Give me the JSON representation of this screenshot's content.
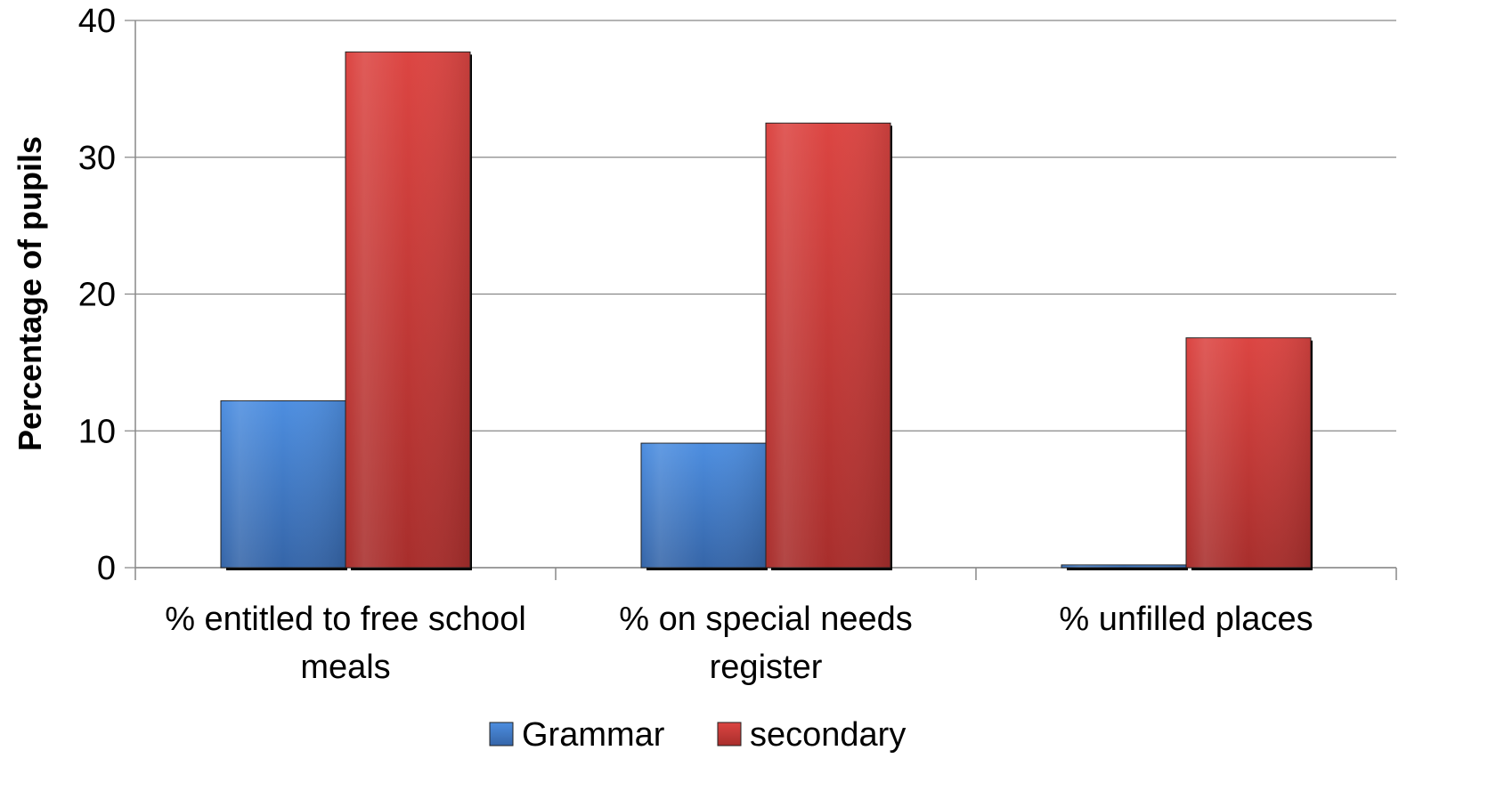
{
  "chart_data": {
    "type": "bar",
    "title": "",
    "xlabel": "",
    "ylabel": "Percentage of pupils",
    "ylim": [
      0,
      40
    ],
    "yticks": [
      0,
      10,
      20,
      30,
      40
    ],
    "categories": [
      [
        "% entitled to free school",
        "meals"
      ],
      [
        "% on special needs",
        "register"
      ],
      [
        "% unfilled places"
      ]
    ],
    "series": [
      {
        "name": "Grammar",
        "values": [
          12.2,
          9.1,
          0.2
        ],
        "color": "#4a86d8"
      },
      {
        "name": "secondary",
        "values": [
          37.7,
          32.5,
          16.8
        ],
        "color": "#d43f3b"
      }
    ],
    "grid": true,
    "legend": "bottom"
  }
}
